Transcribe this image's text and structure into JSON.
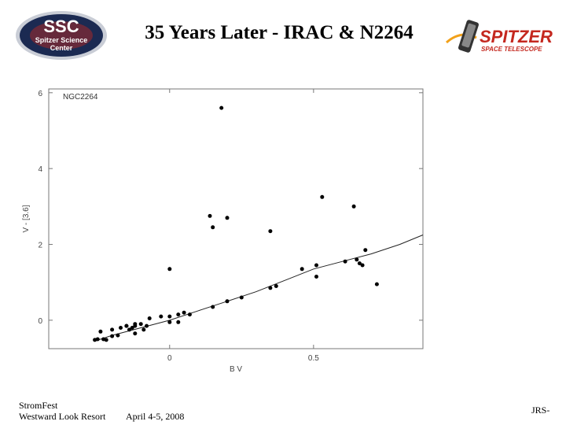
{
  "header": {
    "title": "35 Years Later - IRAC & N2264",
    "ssc_logo": {
      "main": "SSC",
      "line1": "Spitzer Science",
      "line2": "Center",
      "icon": "ssc-logo-icon"
    },
    "spitzer_logo": {
      "main": "SPITZER",
      "sub": "SPACE TELESCOPE",
      "icon": "spitzer-telescope-icon"
    }
  },
  "footer": {
    "event": "StromFest",
    "venue": "Westward Look Resort",
    "date": "April 4-5, 2008",
    "initials": "JRS-"
  },
  "colors": {
    "logo_bg": "#1b2a52",
    "logo_ring": "#c9cdd6",
    "spitzer_red": "#c4281f",
    "spitzer_orange": "#f2a11a",
    "points": "#000000"
  },
  "chart_data": {
    "type": "scatter",
    "panel_label": "NGC2264",
    "xlabel": "B V",
    "ylabel": "V - [3.6]",
    "xlim": [
      -0.42,
      0.88
    ],
    "ylim": [
      -0.75,
      6.1
    ],
    "xticks": [
      0,
      0.5
    ],
    "xtick_labels": [
      "0",
      "0.5"
    ],
    "yticks": [
      0,
      2,
      4,
      6
    ],
    "ytick_labels": [
      "0",
      "2",
      "4",
      "6"
    ],
    "grid": false,
    "points": [
      [
        0.18,
        5.6
      ],
      [
        0.53,
        3.25
      ],
      [
        0.64,
        3.0
      ],
      [
        0.14,
        2.75
      ],
      [
        0.2,
        2.7
      ],
      [
        0.15,
        2.45
      ],
      [
        0.35,
        2.35
      ],
      [
        0.0,
        1.35
      ],
      [
        0.68,
        1.85
      ],
      [
        0.65,
        1.6
      ],
      [
        0.61,
        1.55
      ],
      [
        0.51,
        1.45
      ],
      [
        0.46,
        1.35
      ],
      [
        0.66,
        1.5
      ],
      [
        0.67,
        1.45
      ],
      [
        0.51,
        1.15
      ],
      [
        0.72,
        0.95
      ],
      [
        0.37,
        0.9
      ],
      [
        0.35,
        0.85
      ],
      [
        0.25,
        0.6
      ],
      [
        0.2,
        0.5
      ],
      [
        0.15,
        0.35
      ],
      [
        0.05,
        0.2
      ],
      [
        0.07,
        0.15
      ],
      [
        0.03,
        0.15
      ],
      [
        0.0,
        0.1
      ],
      [
        -0.03,
        0.1
      ],
      [
        -0.07,
        0.05
      ],
      [
        -0.1,
        -0.1
      ],
      [
        -0.12,
        -0.1
      ],
      [
        -0.15,
        -0.15
      ],
      [
        -0.12,
        -0.15
      ],
      [
        -0.08,
        -0.15
      ],
      [
        0.0,
        -0.05
      ],
      [
        0.03,
        -0.05
      ],
      [
        -0.13,
        -0.2
      ],
      [
        -0.14,
        -0.25
      ],
      [
        -0.15,
        -0.15
      ],
      [
        -0.17,
        -0.2
      ],
      [
        -0.09,
        -0.25
      ],
      [
        -0.2,
        -0.25
      ],
      [
        -0.24,
        -0.3
      ],
      [
        -0.18,
        -0.4
      ],
      [
        -0.12,
        -0.35
      ],
      [
        -0.25,
        -0.5
      ],
      [
        -0.23,
        -0.5
      ],
      [
        -0.22,
        -0.52
      ],
      [
        -0.2,
        -0.42
      ],
      [
        -0.26,
        -0.52
      ]
    ],
    "curve": [
      [
        -0.26,
        -0.55
      ],
      [
        -0.2,
        -0.4
      ],
      [
        -0.1,
        -0.2
      ],
      [
        0.0,
        0.0
      ],
      [
        0.1,
        0.25
      ],
      [
        0.2,
        0.5
      ],
      [
        0.3,
        0.75
      ],
      [
        0.4,
        1.05
      ],
      [
        0.5,
        1.35
      ],
      [
        0.6,
        1.55
      ],
      [
        0.7,
        1.75
      ],
      [
        0.8,
        2.0
      ],
      [
        0.88,
        2.25
      ]
    ]
  }
}
